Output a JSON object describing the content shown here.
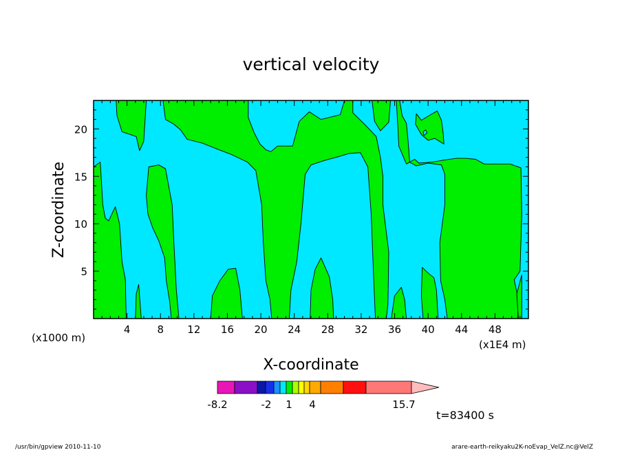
{
  "chart_data": {
    "type": "heatmap",
    "title": "vertical velocity",
    "xlabel": "X-coordinate",
    "ylabel": "Z-coordinate",
    "x_axis": {
      "range": [
        0,
        52
      ],
      "ticks": [
        4,
        8,
        12,
        16,
        20,
        24,
        28,
        32,
        36,
        40,
        44,
        48
      ],
      "unit_left": "(x1000 m)",
      "unit_right": "(x1E4 m)"
    },
    "y_axis": {
      "range": [
        0,
        23
      ],
      "ticks": [
        5,
        10,
        15,
        20
      ]
    },
    "colors": {
      "positive_region": "#00ee00",
      "negative_region": "#00e8ff",
      "contour_line": "#000000"
    },
    "positive_regions": [
      [
        [
          0,
          16
        ],
        [
          0.8,
          16.5
        ],
        [
          1.1,
          12
        ],
        [
          1.4,
          10.6
        ],
        [
          1.8,
          10.3
        ],
        [
          2.6,
          11.8
        ],
        [
          3.1,
          10
        ],
        [
          3.4,
          6
        ],
        [
          3.8,
          4.1
        ],
        [
          3.9,
          0
        ],
        [
          0,
          0
        ]
      ],
      [
        [
          2.7,
          23
        ],
        [
          2.8,
          21.4
        ],
        [
          3.4,
          19.7
        ],
        [
          5.1,
          19.2
        ],
        [
          5.5,
          17.7
        ],
        [
          6,
          18.7
        ],
        [
          6.3,
          23
        ]
      ],
      [
        [
          6.6,
          16
        ],
        [
          7.8,
          16.2
        ],
        [
          8.6,
          15.8
        ],
        [
          9.4,
          12
        ],
        [
          9.6,
          8
        ],
        [
          9.9,
          3
        ],
        [
          10.2,
          0
        ],
        [
          9.3,
          0
        ],
        [
          9.1,
          1.8
        ],
        [
          8.7,
          4
        ],
        [
          8.5,
          6.4
        ],
        [
          7.8,
          8.2
        ],
        [
          7.1,
          9.5
        ],
        [
          6.5,
          11
        ],
        [
          6.3,
          13
        ]
      ],
      [
        [
          5.4,
          3.6
        ],
        [
          5.7,
          0
        ],
        [
          5.0,
          0
        ],
        [
          5.1,
          2.6
        ]
      ],
      [
        [
          14,
          0
        ],
        [
          14.2,
          2.4
        ],
        [
          15.1,
          4
        ],
        [
          16.1,
          5.2
        ],
        [
          17.0,
          5.3
        ],
        [
          17.5,
          3
        ],
        [
          17.8,
          0
        ]
      ],
      [
        [
          8.3,
          23
        ],
        [
          8.6,
          21
        ],
        [
          9.6,
          20.5
        ],
        [
          10.4,
          19.9
        ],
        [
          11.2,
          18.9
        ],
        [
          13,
          18.5
        ],
        [
          15,
          17.8
        ],
        [
          16.5,
          17.3
        ],
        [
          18.4,
          16.5
        ],
        [
          19.4,
          15.6
        ],
        [
          20.1,
          12
        ],
        [
          20.3,
          8
        ],
        [
          20.6,
          4
        ],
        [
          21.1,
          2
        ],
        [
          21.3,
          0
        ],
        [
          23.4,
          0
        ],
        [
          23.6,
          3
        ],
        [
          24.3,
          6
        ],
        [
          24.8,
          10
        ],
        [
          25.3,
          15.2
        ],
        [
          26,
          16.2
        ],
        [
          27.7,
          16.7
        ],
        [
          29,
          17
        ],
        [
          30.5,
          17.4
        ],
        [
          31.9,
          17.5
        ],
        [
          32.8,
          16
        ],
        [
          33.2,
          11
        ],
        [
          33.5,
          4
        ],
        [
          33.7,
          0
        ],
        [
          35,
          0
        ],
        [
          35.2,
          1.5
        ],
        [
          35.3,
          7
        ],
        [
          34.6,
          12
        ],
        [
          34.6,
          15
        ],
        [
          34.3,
          17
        ],
        [
          33.8,
          19.2
        ],
        [
          32.5,
          20.4
        ],
        [
          31,
          21.7
        ],
        [
          31,
          23
        ],
        [
          30,
          23
        ],
        [
          29.5,
          21.5
        ],
        [
          27.2,
          21
        ],
        [
          25.8,
          21.8
        ],
        [
          24.6,
          20.8
        ],
        [
          23.8,
          18.2
        ],
        [
          22,
          18.2
        ],
        [
          21.2,
          17.6
        ],
        [
          20.6,
          17.8
        ],
        [
          19.9,
          18.4
        ],
        [
          19.2,
          19.6
        ],
        [
          18.5,
          21.2
        ],
        [
          18.5,
          23
        ]
      ],
      [
        [
          25.9,
          0
        ],
        [
          26,
          3
        ],
        [
          26.5,
          5.2
        ],
        [
          27.2,
          6.4
        ],
        [
          28.2,
          4.4
        ],
        [
          28.6,
          2
        ],
        [
          28.7,
          0
        ]
      ],
      [
        [
          35.6,
          0
        ],
        [
          36,
          2.4
        ],
        [
          36.8,
          3.3
        ],
        [
          37.2,
          2
        ],
        [
          37.4,
          0
        ]
      ],
      [
        [
          33.3,
          23
        ],
        [
          33.6,
          20.8
        ],
        [
          34.3,
          19.8
        ],
        [
          35.3,
          20.7
        ],
        [
          35.5,
          23
        ]
      ],
      [
        [
          36.2,
          23
        ],
        [
          36.4,
          20
        ],
        [
          36.5,
          18.2
        ],
        [
          37.4,
          16.3
        ],
        [
          38.4,
          16.8
        ],
        [
          38.9,
          16.4
        ],
        [
          40.5,
          16.5
        ],
        [
          41.8,
          16.7
        ],
        [
          43.4,
          16.9
        ],
        [
          44.5,
          16.9
        ],
        [
          45.7,
          16.8
        ],
        [
          46.7,
          16.3
        ],
        [
          48.4,
          16.3
        ],
        [
          49.8,
          16.3
        ],
        [
          51.1,
          15.9
        ],
        [
          51.2,
          11
        ],
        [
          51,
          5
        ],
        [
          50.3,
          4.1
        ],
        [
          50.8,
          2
        ],
        [
          50.7,
          0
        ],
        [
          42.3,
          0
        ],
        [
          42.0,
          2
        ],
        [
          41.5,
          4
        ],
        [
          41.4,
          8
        ],
        [
          42.0,
          12
        ],
        [
          42.0,
          15.2
        ],
        [
          41.6,
          16.2
        ],
        [
          40.0,
          16.4
        ],
        [
          38.6,
          16.1
        ],
        [
          37.8,
          16.5
        ],
        [
          37.6,
          18.8
        ],
        [
          37.4,
          20.6
        ],
        [
          36.9,
          21.4
        ],
        [
          36.6,
          23
        ]
      ],
      [
        [
          38.6,
          21.6
        ],
        [
          39.2,
          20.9
        ],
        [
          40.1,
          21.4
        ],
        [
          41.1,
          21.9
        ],
        [
          41.6,
          20.9
        ],
        [
          41.8,
          19.6
        ],
        [
          41.9,
          18.4
        ],
        [
          40.8,
          19
        ],
        [
          40.0,
          18.8
        ],
        [
          39.2,
          19.4
        ],
        [
          38.5,
          20.5
        ]
      ],
      [
        [
          39.3,
          5.4
        ],
        [
          40,
          4.8
        ],
        [
          40.7,
          4.3
        ],
        [
          41,
          3
        ],
        [
          41.2,
          0
        ],
        [
          39.4,
          0
        ],
        [
          39.2,
          2.4
        ]
      ],
      [
        [
          51.2,
          4.6
        ],
        [
          51.2,
          0
        ],
        [
          50.8,
          0
        ],
        [
          50.6,
          2.6
        ]
      ]
    ],
    "negative_islands": [
      [
        [
          39.5,
          19.3
        ],
        [
          39.9,
          19.6
        ],
        [
          39.7,
          19.9
        ],
        [
          39.4,
          19.7
        ]
      ]
    ],
    "colorbar": {
      "colors": [
        "#e816b6",
        "#8a10c8",
        "#0a18a8",
        "#1630e8",
        "#1e90ff",
        "#00e8ff",
        "#00ee00",
        "#aaff00",
        "#ffff00",
        "#ffd700",
        "#ffaa00",
        "#ff7f00",
        "#ff1010",
        "#ff7878",
        "#ffbcbc"
      ],
      "tick_labels": [
        "-8.2",
        "-2",
        "1",
        "4",
        "15.7"
      ]
    },
    "time_label": "t=83400 s"
  },
  "footer": {
    "left_text": "/usr/bin/gpview   2010-11-10",
    "right_text": "arare-earth-reikyaku2K-noEvap_VelZ.nc@VelZ"
  }
}
